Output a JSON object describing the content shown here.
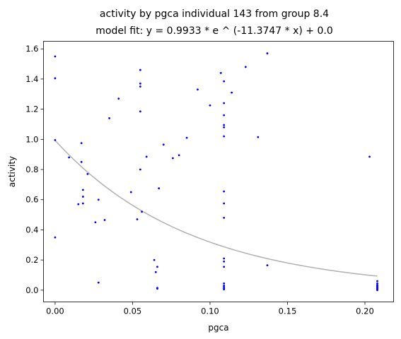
{
  "chart_data": {
    "type": "scatter",
    "title": "activity by pgca individual 143 from group 8.4",
    "subtitle": "model fit: y = 0.9933 * e ^ (-11.3747 * x) + 0.0",
    "xlabel": "pgca",
    "ylabel": "activity",
    "xlim": [
      -0.0075,
      0.2185
    ],
    "ylim": [
      -0.078,
      1.65
    ],
    "xticks": [
      0.0,
      0.05,
      0.1,
      0.15,
      0.2
    ],
    "xtick_labels": [
      "0.00",
      "0.05",
      "0.10",
      "0.15",
      "0.20"
    ],
    "yticks": [
      0.0,
      0.2,
      0.4,
      0.6,
      0.8,
      1.0,
      1.2,
      1.4,
      1.6
    ],
    "ytick_labels": [
      "0.0",
      "0.2",
      "0.4",
      "0.6",
      "0.8",
      "1.0",
      "1.2",
      "1.4",
      "1.6"
    ],
    "grid": false,
    "point_color": "#0000ff",
    "fit_color": "#b0b0b0",
    "fit": {
      "a": 0.9933,
      "b": -11.3747,
      "c": 0.0,
      "x_range": [
        0.0,
        0.208
      ]
    },
    "points": [
      [
        0.0,
        1.55
      ],
      [
        0.0,
        1.405
      ],
      [
        0.0,
        0.995
      ],
      [
        0.0,
        0.35
      ],
      [
        0.009,
        0.88
      ],
      [
        0.017,
        0.85
      ],
      [
        0.017,
        0.975
      ],
      [
        0.018,
        0.665
      ],
      [
        0.018,
        0.62
      ],
      [
        0.018,
        0.575
      ],
      [
        0.015,
        0.57
      ],
      [
        0.021,
        0.77
      ],
      [
        0.026,
        0.45
      ],
      [
        0.028,
        0.6
      ],
      [
        0.028,
        0.05
      ],
      [
        0.032,
        0.465
      ],
      [
        0.035,
        1.14
      ],
      [
        0.041,
        1.27
      ],
      [
        0.049,
        0.65
      ],
      [
        0.053,
        0.47
      ],
      [
        0.055,
        1.46
      ],
      [
        0.055,
        1.37
      ],
      [
        0.055,
        1.35
      ],
      [
        0.055,
        1.185
      ],
      [
        0.055,
        0.8
      ],
      [
        0.056,
        0.52
      ],
      [
        0.059,
        0.885
      ],
      [
        0.064,
        0.2
      ],
      [
        0.065,
        0.12
      ],
      [
        0.066,
        0.155
      ],
      [
        0.066,
        0.01
      ],
      [
        0.066,
        0.015
      ],
      [
        0.067,
        0.675
      ],
      [
        0.07,
        0.965
      ],
      [
        0.076,
        0.875
      ],
      [
        0.08,
        0.895
      ],
      [
        0.085,
        1.01
      ],
      [
        0.092,
        1.33
      ],
      [
        0.1,
        1.225
      ],
      [
        0.107,
        1.44
      ],
      [
        0.109,
        1.385
      ],
      [
        0.109,
        1.24
      ],
      [
        0.109,
        1.16
      ],
      [
        0.109,
        1.095
      ],
      [
        0.109,
        1.08
      ],
      [
        0.109,
        1.02
      ],
      [
        0.109,
        0.655
      ],
      [
        0.109,
        0.575
      ],
      [
        0.109,
        0.48
      ],
      [
        0.109,
        0.21
      ],
      [
        0.109,
        0.19
      ],
      [
        0.109,
        0.155
      ],
      [
        0.109,
        0.045
      ],
      [
        0.109,
        0.03
      ],
      [
        0.109,
        0.02
      ],
      [
        0.109,
        0.01
      ],
      [
        0.109,
        0.005
      ],
      [
        0.114,
        1.31
      ],
      [
        0.123,
        1.48
      ],
      [
        0.131,
        1.015
      ],
      [
        0.137,
        1.57
      ],
      [
        0.137,
        0.165
      ],
      [
        0.203,
        0.885
      ],
      [
        0.208,
        0.06
      ],
      [
        0.208,
        0.045
      ],
      [
        0.208,
        0.035
      ],
      [
        0.208,
        0.025
      ],
      [
        0.208,
        0.02
      ],
      [
        0.208,
        0.015
      ],
      [
        0.208,
        0.01
      ],
      [
        0.208,
        0.005
      ],
      [
        0.208,
        0.0
      ],
      [
        0.208,
        0.03
      ]
    ]
  }
}
